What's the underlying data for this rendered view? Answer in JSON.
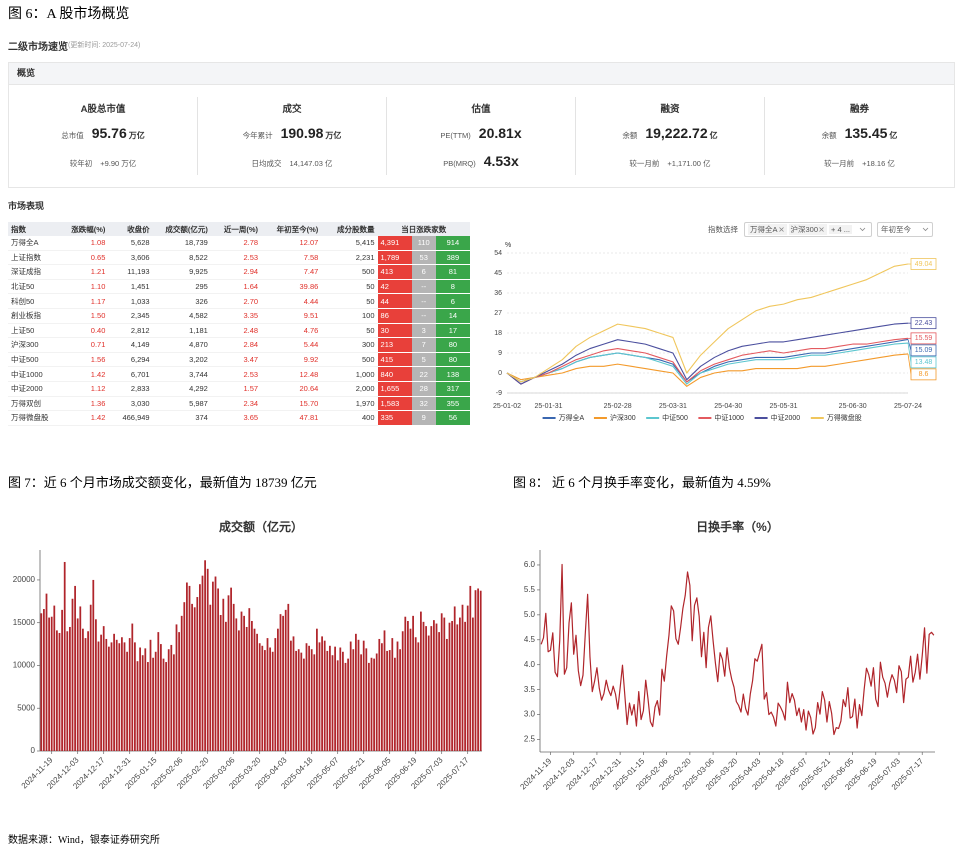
{
  "figure6": {
    "caption": "图 6：A 股市场概览"
  },
  "panel": {
    "title": "二级市场速览",
    "updated": "(更新时间: 2025-07-24)"
  },
  "overview": {
    "title": "概览",
    "cards": [
      {
        "title": "A股总市值",
        "main": {
          "label": "总市值",
          "value": "95.76",
          "unit": "万亿"
        },
        "sub": {
          "label": "较年初",
          "value": "+9.90 万亿"
        }
      },
      {
        "title": "成交",
        "main": {
          "label": "今年累计",
          "value": "190.98",
          "unit": "万亿"
        },
        "sub": {
          "label": "日均成交",
          "value": "14,147.03 亿"
        }
      },
      {
        "title": "估值",
        "main": {
          "label": "PE(TTM)",
          "value": "20.81x"
        },
        "sub": {
          "label": "PB(MRQ)",
          "value": "4.53x"
        }
      },
      {
        "title": "融资",
        "main": {
          "label": "余额",
          "value": "19,222.72",
          "unit": "亿"
        },
        "sub": {
          "label": "较一月前",
          "value": "+1,171.00 亿"
        }
      },
      {
        "title": "融券",
        "main": {
          "label": "余额",
          "value": "135.45",
          "unit": "亿"
        },
        "sub": {
          "label": "较一月前",
          "value": "+18.16 亿"
        }
      }
    ]
  },
  "market": {
    "title": "市场表现",
    "headers": [
      "指数",
      "涨跌幅(%)",
      "收盘价",
      "成交额(亿元)",
      "近一周(%)",
      "年初至今(%)",
      "成分股数量",
      "当日涨跌家数"
    ],
    "rows": [
      [
        "万得全A",
        "1.08",
        "5,628",
        "18,739",
        "2.78",
        "12.07",
        "5,415",
        "4,391",
        "110",
        "914"
      ],
      [
        "上证指数",
        "0.65",
        "3,606",
        "8,522",
        "2.53",
        "7.58",
        "2,231",
        "1,789",
        "53",
        "389"
      ],
      [
        "深证成指",
        "1.21",
        "11,193",
        "9,925",
        "2.94",
        "7.47",
        "500",
        "413",
        "6",
        "81"
      ],
      [
        "北证50",
        "1.10",
        "1,451",
        "295",
        "1.64",
        "39.86",
        "50",
        "42",
        "--",
        "8"
      ],
      [
        "科创50",
        "1.17",
        "1,033",
        "326",
        "2.70",
        "4.44",
        "50",
        "44",
        "--",
        "6"
      ],
      [
        "創业板指",
        "1.50",
        "2,345",
        "4,582",
        "3.35",
        "9.51",
        "100",
        "86",
        "--",
        "14"
      ],
      [
        "上证50",
        "0.40",
        "2,812",
        "1,181",
        "2.48",
        "4.76",
        "50",
        "30",
        "3",
        "17"
      ],
      [
        "沪深300",
        "0.71",
        "4,149",
        "4,870",
        "2.84",
        "5.44",
        "300",
        "213",
        "7",
        "80"
      ],
      [
        "中证500",
        "1.56",
        "6,294",
        "3,202",
        "3.47",
        "9.92",
        "500",
        "415",
        "5",
        "80"
      ],
      [
        "中证1000",
        "1.42",
        "6,701",
        "3,744",
        "2.53",
        "12.48",
        "1,000",
        "840",
        "22",
        "138"
      ],
      [
        "中证2000",
        "1.12",
        "2,833",
        "4,292",
        "1.57",
        "20.64",
        "2,000",
        "1,655",
        "28",
        "317"
      ],
      [
        "万得双创",
        "1.36",
        "3,030",
        "5,987",
        "2.34",
        "15.70",
        "1,970",
        "1,583",
        "32",
        "355"
      ],
      [
        "万得微盘股",
        "1.42",
        "466,949",
        "374",
        "3.65",
        "47.81",
        "400",
        "335",
        "9",
        "56"
      ]
    ]
  },
  "index_selector": {
    "label": "指数选择",
    "tags": [
      "万得全A",
      "沪深300",
      "+ 4 ..."
    ],
    "period": "年初至今"
  },
  "captions": {
    "fig7": "图 7：近 6 个月市场成交额变化，最新值为 18739 亿元",
    "fig8": "图 8：  近 6 个月换手率变化，最新值为 4.59%"
  },
  "source": "数据来源：Wind，银泰证券研究所",
  "chart_data": [
    {
      "type": "line",
      "y_label": "%",
      "grid": true,
      "legend": "bottom",
      "end_labels": true,
      "categories": [
        "25-01-02",
        null,
        null,
        "25-01-31",
        null,
        null,
        null,
        null,
        "25-02-28",
        null,
        null,
        null,
        "25-03-31",
        null,
        null,
        null,
        "25-04-30",
        null,
        null,
        null,
        "25-05-31",
        null,
        null,
        null,
        null,
        "25-06-30",
        null,
        null,
        null,
        "25-07-24"
      ],
      "ylim": [
        -9,
        54
      ],
      "yticks": [
        -9,
        0,
        9,
        18,
        27,
        36,
        45,
        54
      ],
      "series": [
        {
          "name": "万得全A",
          "color": "#3a67b0",
          "values": [
            0,
            -4,
            -2,
            0,
            2,
            5,
            7,
            8,
            9,
            8,
            7,
            6,
            4,
            -4,
            0,
            3,
            5,
            6,
            7,
            7,
            7,
            8,
            9,
            9,
            10,
            11,
            12,
            13,
            14,
            15.09
          ]
        },
        {
          "name": "沪深300",
          "color": "#f39a2b",
          "values": [
            0,
            -3,
            -2,
            -1,
            0,
            2,
            3,
            3,
            4,
            3,
            2,
            1,
            0,
            -6,
            -2,
            0,
            1,
            1,
            2,
            2,
            2,
            2,
            3,
            3,
            4,
            5,
            6,
            7,
            8,
            8.6
          ]
        },
        {
          "name": "中证500",
          "color": "#5cc6cf",
          "values": [
            0,
            -4,
            -2,
            0,
            2,
            5,
            7,
            8,
            9,
            8,
            7,
            5,
            3,
            -5,
            0,
            2,
            4,
            5,
            6,
            6,
            6,
            7,
            8,
            8,
            9,
            10,
            11,
            12,
            13,
            13.48
          ]
        },
        {
          "name": "中证1000",
          "color": "#e35a5f",
          "values": [
            0,
            -5,
            -2,
            0,
            3,
            6,
            8,
            10,
            11,
            10,
            9,
            7,
            5,
            -4,
            1,
            4,
            6,
            8,
            9,
            10,
            9,
            10,
            11,
            11,
            12,
            13,
            13,
            14,
            15,
            15.59
          ]
        },
        {
          "name": "中证2000",
          "color": "#4b4f9e",
          "values": [
            0,
            -5,
            -2,
            1,
            4,
            8,
            11,
            13,
            15,
            14,
            13,
            11,
            9,
            -3,
            3,
            7,
            10,
            12,
            13,
            14,
            14,
            15,
            16,
            17,
            18,
            19,
            20,
            21,
            22,
            22.43
          ]
        },
        {
          "name": "万得微盘股",
          "color": "#f0c65c",
          "values": [
            0,
            -4,
            -2,
            2,
            6,
            12,
            16,
            19,
            22,
            21,
            20,
            18,
            16,
            0,
            8,
            14,
            20,
            24,
            28,
            30,
            31,
            33,
            34,
            36,
            38,
            40,
            42,
            45,
            48,
            49.04
          ]
        }
      ]
    },
    {
      "type": "bar",
      "title": "成交额（亿元）",
      "color": "#b0252b",
      "grid": false,
      "categories": [
        null,
        null,
        null,
        null,
        "2024-11-19",
        null,
        null,
        null,
        null,
        null,
        null,
        null,
        null,
        null,
        "2024-12-03",
        null,
        null,
        null,
        null,
        null,
        null,
        null,
        null,
        null,
        "2024-12-17",
        null,
        null,
        null,
        null,
        null,
        null,
        null,
        null,
        null,
        "2024-12-31",
        null,
        null,
        null,
        null,
        null,
        null,
        null,
        null,
        null,
        "2025-01-15",
        null,
        null,
        null,
        null,
        null,
        null,
        null,
        null,
        null,
        "2025-02-06",
        null,
        null,
        null,
        null,
        null,
        null,
        null,
        null,
        null,
        "2025-02-20",
        null,
        null,
        null,
        null,
        null,
        null,
        null,
        null,
        null,
        "2025-03-06",
        null,
        null,
        null,
        null,
        null,
        null,
        null,
        null,
        null,
        "2025-03-20",
        null,
        null,
        null,
        null,
        null,
        null,
        null,
        null,
        null,
        "2025-04-03",
        null,
        null,
        null,
        null,
        null,
        null,
        null,
        null,
        null,
        "2025-04-18",
        null,
        null,
        null,
        null,
        null,
        null,
        null,
        null,
        null,
        "2025-05-07",
        null,
        null,
        null,
        null,
        null,
        null,
        null,
        null,
        null,
        "2025-05-21",
        null,
        null,
        null,
        null,
        null,
        null,
        null,
        null,
        null,
        "2025-06-05",
        null,
        null,
        null,
        null,
        null,
        null,
        null,
        null,
        null,
        "2025-06-19",
        null,
        null,
        null,
        null,
        null,
        null,
        null,
        null,
        null,
        "2025-07-03",
        null,
        null,
        null,
        null,
        null,
        null,
        null,
        null,
        null,
        "2025-07-17",
        null,
        null,
        null,
        null,
        null
      ],
      "ylim": [
        0,
        23500
      ],
      "yticks": [
        0,
        5000,
        10000,
        15000,
        20000
      ],
      "values": [
        16100,
        16600,
        18400,
        15600,
        15700,
        17000,
        14100,
        13800,
        16500,
        22100,
        14000,
        14500,
        17800,
        19300,
        15500,
        16900,
        14300,
        13200,
        14000,
        17100,
        20000,
        15400,
        12800,
        13600,
        14600,
        13100,
        12200,
        12700,
        13700,
        13000,
        12600,
        13300,
        12700,
        11600,
        13200,
        14900,
        12700,
        10500,
        12100,
        11200,
        12000,
        10400,
        13000,
        10900,
        11600,
        13900,
        12500,
        10800,
        10400,
        11900,
        12400,
        11300,
        14800,
        13900,
        15800,
        17400,
        19700,
        19300,
        17200,
        16800,
        18000,
        19500,
        20500,
        22300,
        21300,
        17100,
        19800,
        20400,
        19000,
        15900,
        17800,
        15100,
        18200,
        19100,
        17200,
        15500,
        14100,
        16300,
        15800,
        14500,
        16700,
        15200,
        14300,
        13700,
        12600,
        12300,
        11800,
        13200,
        12100,
        11600,
        13200,
        14300,
        16000,
        15800,
        16500,
        17200,
        12900,
        13400,
        11700,
        11900,
        11500,
        10800,
        12600,
        12300,
        11900,
        11300,
        14300,
        12700,
        13400,
        12900,
        11700,
        12300,
        11200,
        12200,
        10600,
        12100,
        11600,
        10300,
        10800,
        12800,
        11900,
        13700,
        13000,
        11300,
        12900,
        12000,
        10300,
        10900,
        10800,
        11400,
        13100,
        12600,
        14100,
        11700,
        11800,
        13200,
        10900,
        12800,
        11900,
        14000,
        15700,
        15200,
        14300,
        15800,
        13300,
        12700,
        16300,
        15100,
        14600,
        13500,
        14600,
        15300,
        14900,
        13900,
        16100,
        15600,
        13100,
        15000,
        15200,
        16900,
        14800,
        15600,
        17100,
        15100,
        17000,
        19300,
        15600,
        18800,
        19000,
        18739
      ]
    },
    {
      "type": "line",
      "title": "日换手率（%）",
      "color": "#b0252b",
      "grid": false,
      "categories": [
        null,
        null,
        null,
        null,
        "2024-11-19",
        null,
        null,
        null,
        null,
        null,
        null,
        null,
        null,
        null,
        "2024-12-03",
        null,
        null,
        null,
        null,
        null,
        null,
        null,
        null,
        null,
        "2024-12-17",
        null,
        null,
        null,
        null,
        null,
        null,
        null,
        null,
        null,
        "2024-12-31",
        null,
        null,
        null,
        null,
        null,
        null,
        null,
        null,
        null,
        "2025-01-15",
        null,
        null,
        null,
        null,
        null,
        null,
        null,
        null,
        null,
        "2025-02-06",
        null,
        null,
        null,
        null,
        null,
        null,
        null,
        null,
        null,
        "2025-02-20",
        null,
        null,
        null,
        null,
        null,
        null,
        null,
        null,
        null,
        "2025-03-06",
        null,
        null,
        null,
        null,
        null,
        null,
        null,
        null,
        null,
        "2025-03-20",
        null,
        null,
        null,
        null,
        null,
        null,
        null,
        null,
        null,
        "2025-04-03",
        null,
        null,
        null,
        null,
        null,
        null,
        null,
        null,
        null,
        "2025-04-18",
        null,
        null,
        null,
        null,
        null,
        null,
        null,
        null,
        null,
        "2025-05-07",
        null,
        null,
        null,
        null,
        null,
        null,
        null,
        null,
        null,
        "2025-05-21",
        null,
        null,
        null,
        null,
        null,
        null,
        null,
        null,
        null,
        "2025-06-05",
        null,
        null,
        null,
        null,
        null,
        null,
        null,
        null,
        null,
        "2025-06-19",
        null,
        null,
        null,
        null,
        null,
        null,
        null,
        null,
        null,
        "2025-07-03",
        null,
        null,
        null,
        null,
        null,
        null,
        null,
        null,
        null,
        "2025-07-17",
        null,
        null,
        null,
        null,
        null
      ],
      "ylim": [
        2.25,
        6.3
      ],
      "yticks": [
        2.5,
        {
          "value": 3,
          "label": "3.0"
        },
        3.5,
        {
          "value": 4,
          "label": "4.0"
        },
        4.5,
        {
          "value": 5,
          "label": "5.0"
        },
        5.5,
        {
          "value": 6,
          "label": "6.0"
        }
      ],
      "values": [
        4.41,
        4.54,
        5.03,
        4.26,
        4.29,
        4.64,
        3.85,
        3.76,
        4.49,
        6.01,
        3.81,
        3.94,
        4.84,
        5.24,
        4.21,
        4.59,
        3.88,
        3.58,
        3.79,
        4.63,
        5.41,
        4.16,
        3.46,
        3.67,
        3.94,
        3.53,
        3.29,
        3.42,
        3.69,
        3.49,
        3.38,
        3.57,
        3.41,
        3.11,
        3.54,
        3.99,
        3.39,
        2.8,
        3.23,
        2.99,
        3.2,
        2.77,
        3.46,
        2.9,
        3.08,
        3.69,
        3.31,
        2.86,
        2.76,
        3.15,
        3.28,
        2.99,
        3.91,
        3.67,
        4.17,
        4.59,
        5.18,
        5.08,
        4.52,
        4.41,
        4.74,
        5.13,
        5.39,
        5.86,
        5.59,
        4.48,
        5.19,
        5.34,
        4.97,
        4.16,
        4.65,
        3.94,
        4.75,
        4.98,
        4.48,
        4.03,
        3.66,
        4.24,
        4.11,
        3.77,
        4.34,
        3.94,
        3.71,
        3.55,
        3.26,
        3.18,
        3.05,
        3.41,
        3.12,
        2.99,
        3.41,
        3.68,
        4.12,
        4.07,
        4.24,
        4.41,
        3.31,
        3.44,
        3.0,
        3.05,
        2.95,
        2.77,
        3.23,
        3.15,
        3.05,
        2.89,
        3.65,
        3.24,
        3.42,
        3.29,
        2.98,
        3.13,
        2.85,
        3.1,
        2.69,
        3.07,
        2.94,
        2.61,
        2.74,
        3.24,
        3.01,
        3.46,
        3.29,
        2.85,
        3.26,
        3.03,
        2.6,
        2.74,
        2.72,
        2.87,
        3.3,
        3.16,
        3.54,
        2.93,
        2.96,
        3.31,
        2.73,
        3.2,
        2.98,
        3.5,
        3.93,
        3.8,
        3.57,
        3.94,
        3.31,
        3.16,
        4.05,
        3.75,
        3.63,
        3.35,
        3.63,
        3.8,
        3.69,
        3.44,
        3.98,
        3.86,
        3.24,
        3.71,
        3.75,
        4.17,
        3.65,
        3.85,
        4.21,
        3.71,
        4.18,
        4.74,
        3.83,
        4.61,
        4.65,
        4.59
      ]
    }
  ]
}
